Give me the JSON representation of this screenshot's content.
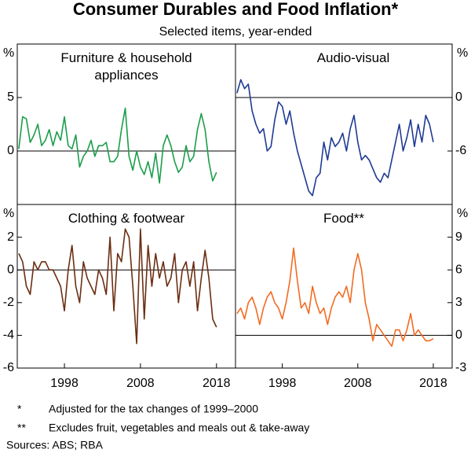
{
  "title": "Consumer Durables and Food Inflation*",
  "subtitle": "Selected items, year-ended",
  "notes": [
    {
      "marker": "*",
      "text": "Adjusted for the tax changes of 1999–2000"
    },
    {
      "marker": "**",
      "text": "Excludes fruit, vegetables and meals out & take-away"
    }
  ],
  "sources": "Sources: ABS; RBA",
  "chart_data": [
    {
      "type": "line",
      "title": "Furniture & household appliances",
      "unit": "%",
      "y_axis_side": "left",
      "color": "#1a9e4a",
      "xlim": [
        1991.8,
        2020.5
      ],
      "ylim": [
        -5,
        10
      ],
      "yticks": [
        0,
        5
      ],
      "x": [
        1992,
        1992.5,
        1993,
        1993.5,
        1994,
        1994.5,
        1995,
        1995.5,
        1996,
        1996.5,
        1997,
        1997.5,
        1998,
        1998.5,
        1999,
        1999.5,
        2000,
        2000.5,
        2001,
        2001.5,
        2002,
        2002.5,
        2003,
        2003.5,
        2004,
        2004.5,
        2005,
        2005.5,
        2006,
        2006.5,
        2007,
        2007.5,
        2008,
        2008.5,
        2009,
        2009.5,
        2010,
        2010.5,
        2011,
        2011.5,
        2012,
        2012.5,
        2013,
        2013.5,
        2014,
        2014.5,
        2015,
        2015.5,
        2016,
        2016.5,
        2017,
        2017.5,
        2018
      ],
      "values": [
        0.2,
        3.2,
        3.0,
        0.8,
        1.5,
        2.5,
        0.5,
        1.0,
        2.0,
        0.5,
        1.8,
        1.0,
        3.2,
        0.5,
        0.2,
        1.5,
        -1.5,
        -0.5,
        0.0,
        1.0,
        -0.5,
        0.5,
        0.5,
        0.8,
        -1.0,
        -1.0,
        -0.5,
        2.0,
        4.0,
        -0.5,
        -1.8,
        0.0,
        -1.5,
        -2.2,
        -1.0,
        -2.5,
        -0.2,
        -3.0,
        0.5,
        1.5,
        0.5,
        -1.0,
        -2.0,
        -1.5,
        0.5,
        -1.0,
        -0.5,
        2.0,
        3.5,
        2.0,
        -1.0,
        -2.8,
        -2.0
      ]
    },
    {
      "type": "line",
      "title": "Audio-visual",
      "unit": "%",
      "y_axis_side": "right",
      "color": "#1f3a93",
      "xlim": [
        1991.8,
        2020.5
      ],
      "ylim": [
        -12,
        6
      ],
      "yticks": [
        -6,
        0
      ],
      "x": [
        1992,
        1992.5,
        1993,
        1993.5,
        1994,
        1994.5,
        1995,
        1995.5,
        1996,
        1996.5,
        1997,
        1997.5,
        1998,
        1998.5,
        1999,
        1999.5,
        2000,
        2000.5,
        2001,
        2001.5,
        2002,
        2002.5,
        2003,
        2003.5,
        2004,
        2004.5,
        2005,
        2005.5,
        2006,
        2006.5,
        2007,
        2007.5,
        2008,
        2008.5,
        2009,
        2009.5,
        2010,
        2010.5,
        2011,
        2011.5,
        2012,
        2012.5,
        2013,
        2013.5,
        2014,
        2014.5,
        2015,
        2015.5,
        2016,
        2016.5,
        2017,
        2017.5,
        2018
      ],
      "values": [
        0.5,
        2.0,
        1.0,
        1.5,
        -1.5,
        -3.0,
        -4.0,
        -3.5,
        -6.0,
        -5.5,
        -2.5,
        -0.5,
        -1.0,
        -3.0,
        -1.5,
        -4.0,
        -6.0,
        -7.5,
        -9.0,
        -10.5,
        -11.0,
        -9.0,
        -8.5,
        -5.0,
        -7.0,
        -4.5,
        -5.5,
        -5.0,
        -4.0,
        -6.0,
        -3.5,
        -2.0,
        -5.0,
        -7.0,
        -6.5,
        -7.0,
        -8.0,
        -9.0,
        -9.5,
        -8.5,
        -9.0,
        -7.0,
        -5.0,
        -3.0,
        -6.0,
        -4.5,
        -2.5,
        -5.5,
        -3.0,
        -5.0,
        -2.0,
        -3.0,
        -5.0
      ]
    },
    {
      "type": "line",
      "title": "Clothing & footwear",
      "unit": "%",
      "y_axis_side": "left",
      "color": "#6b2e12",
      "xlim": [
        1991.8,
        2020.5
      ],
      "ylim": [
        -6,
        4
      ],
      "yticks": [
        -6,
        -4,
        -2,
        0,
        2
      ],
      "xticks": [
        1998,
        2008,
        2018
      ],
      "x": [
        1992,
        1992.5,
        1993,
        1993.5,
        1994,
        1994.5,
        1995,
        1995.5,
        1996,
        1996.5,
        1997,
        1997.5,
        1998,
        1998.5,
        1999,
        1999.5,
        2000,
        2000.5,
        2001,
        2001.5,
        2002,
        2002.5,
        2003,
        2003.5,
        2004,
        2004.5,
        2005,
        2005.5,
        2006,
        2006.5,
        2007,
        2007.5,
        2008,
        2008.5,
        2009,
        2009.5,
        2010,
        2010.5,
        2011,
        2011.5,
        2012,
        2012.5,
        2013,
        2013.5,
        2014,
        2014.5,
        2015,
        2015.5,
        2016,
        2016.5,
        2017,
        2017.5,
        2018
      ],
      "values": [
        1.0,
        0.5,
        -1.0,
        -1.5,
        0.5,
        0.0,
        0.5,
        0.5,
        0.0,
        0.0,
        -0.5,
        -1.0,
        -2.5,
        0.0,
        1.5,
        -1.0,
        -2.0,
        0.5,
        -0.5,
        -1.0,
        -1.5,
        0.0,
        -0.5,
        -1.5,
        2.0,
        -2.5,
        1.0,
        0.5,
        2.5,
        2.0,
        -1.0,
        -4.5,
        2.5,
        -3.0,
        1.5,
        -1.0,
        1.0,
        -0.5,
        0.5,
        -1.0,
        -0.5,
        1.0,
        -2.0,
        0.0,
        0.5,
        -1.0,
        0.5,
        -2.5,
        -0.5,
        1.2,
        -0.5,
        -3.0,
        -3.5
      ]
    },
    {
      "type": "line",
      "title": "Food**",
      "unit": "%",
      "y_axis_side": "right",
      "color": "#f26b21",
      "xlim": [
        1991.8,
        2020.5
      ],
      "ylim": [
        -3,
        12
      ],
      "yticks": [
        -3,
        0,
        3,
        6,
        9
      ],
      "xticks": [
        1998,
        2008,
        2018
      ],
      "x": [
        1992,
        1992.5,
        1993,
        1993.5,
        1994,
        1994.5,
        1995,
        1995.5,
        1996,
        1996.5,
        1997,
        1997.5,
        1998,
        1998.5,
        1999,
        1999.5,
        2000,
        2000.5,
        2001,
        2001.5,
        2002,
        2002.5,
        2003,
        2003.5,
        2004,
        2004.5,
        2005,
        2005.5,
        2006,
        2006.5,
        2007,
        2007.5,
        2008,
        2008.5,
        2009,
        2009.5,
        2010,
        2010.5,
        2011,
        2011.5,
        2012,
        2012.5,
        2013,
        2013.5,
        2014,
        2014.5,
        2015,
        2015.5,
        2016,
        2016.5,
        2017,
        2017.5,
        2018
      ],
      "values": [
        2.0,
        2.5,
        1.5,
        3.0,
        3.5,
        2.5,
        1.0,
        2.5,
        3.5,
        4.0,
        3.0,
        2.5,
        1.5,
        3.0,
        5.0,
        8.0,
        5.0,
        2.5,
        3.0,
        2.0,
        4.5,
        3.0,
        2.0,
        2.5,
        1.0,
        2.5,
        3.5,
        4.0,
        3.5,
        4.5,
        3.0,
        6.0,
        7.5,
        6.0,
        3.0,
        1.5,
        -0.5,
        1.0,
        0.5,
        0.0,
        -0.5,
        -1.0,
        0.5,
        0.5,
        -0.5,
        0.5,
        2.0,
        0.0,
        0.5,
        0.0,
        -0.5,
        -0.5,
        -0.3
      ]
    }
  ]
}
